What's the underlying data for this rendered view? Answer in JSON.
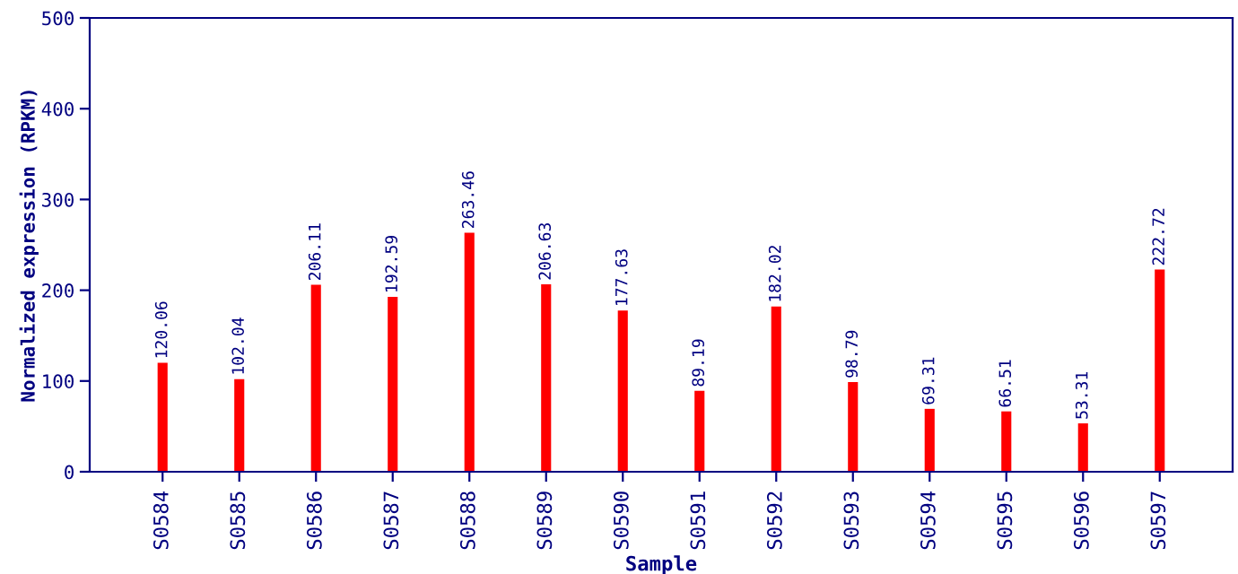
{
  "chart_data": {
    "type": "bar",
    "xlabel": "Sample",
    "ylabel": "Normalized expression (RPKM)",
    "categories": [
      "S0584",
      "S0585",
      "S0586",
      "S0587",
      "S0588",
      "S0589",
      "S0590",
      "S0591",
      "S0592",
      "S0593",
      "S0594",
      "S0595",
      "S0596",
      "S0597"
    ],
    "values": [
      120.06,
      102.04,
      206.11,
      192.59,
      263.46,
      206.63,
      177.63,
      89.19,
      182.02,
      98.79,
      69.31,
      66.51,
      53.31,
      222.72
    ],
    "color": "#ff0000",
    "data_labels": true,
    "ylim": [
      0,
      500
    ],
    "yticks": [
      0,
      100,
      200,
      300,
      400,
      500
    ],
    "grid": false,
    "legend": false
  }
}
